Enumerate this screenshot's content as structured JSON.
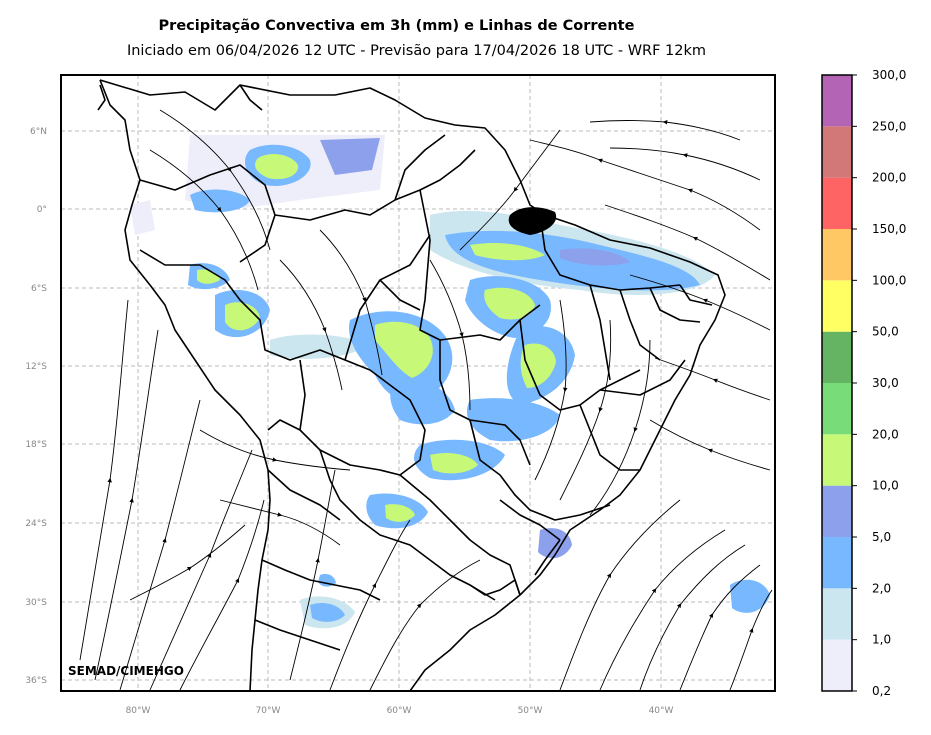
{
  "title": "Precipitação Convectiva em 3h (mm) e Linhas de Corrente",
  "subtitle": "Iniciado em 06/04/2026 12 UTC - Previsão para 17/04/2026 18 UTC - WRF 12km",
  "credit": "SEMAD/CIMEHGO",
  "latitude_ticks": [
    "6°N",
    "0°",
    "6°S",
    "12°S",
    "18°S",
    "24°S",
    "30°S",
    "36°S"
  ],
  "longitude_ticks": [
    "80°W",
    "70°W",
    "60°W",
    "50°W",
    "40°W"
  ],
  "colorbar": {
    "levels": [
      "0,2",
      "1,0",
      "2,0",
      "5,0",
      "10,0",
      "20,0",
      "30,0",
      "50,0",
      "100,0",
      "150,0",
      "200,0",
      "250,0",
      "300,0"
    ],
    "colors": [
      "#eeeefa",
      "#cce6f0",
      "#78b8ff",
      "#8ca0ec",
      "#c8f878",
      "#78dc78",
      "#64b464",
      "#ffff64",
      "#ffc864",
      "#ff6464",
      "#d27878",
      "#b464b4"
    ]
  },
  "colors": {
    "coastline": "#000000",
    "streamline": "#000000",
    "grid": "#bbbbbb"
  }
}
